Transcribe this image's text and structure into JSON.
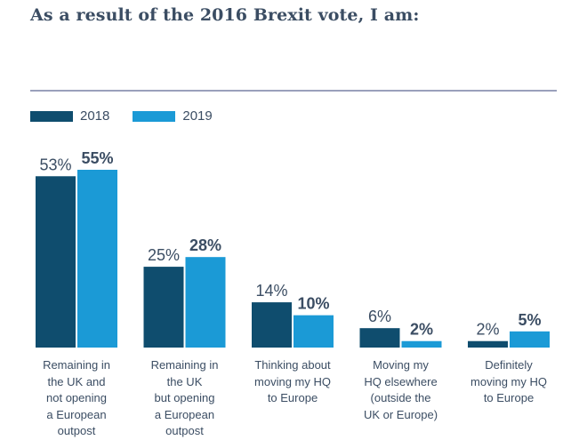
{
  "title": "As a result of the 2016 Brexit vote, I am:",
  "chart_data": {
    "type": "bar",
    "categories": [
      "Remaining in\nthe UK and\nnot opening\na European\noutpost",
      "Remaining in\nthe UK\nbut opening\na European\noutpost",
      "Thinking about\nmoving my HQ\nto Europe",
      "Moving my\nHQ elsewhere\n(outside the\nUK or Europe)",
      "Definitely\nmoving my HQ\nto Europe"
    ],
    "series": [
      {
        "name": "2018",
        "values": [
          53,
          25,
          14,
          6,
          2
        ],
        "labels": [
          "53%",
          "25%",
          "14%",
          "6%",
          "2%"
        ],
        "color": "#0f4d6e"
      },
      {
        "name": "2019",
        "values": [
          55,
          28,
          10,
          2,
          5
        ],
        "labels": [
          "55%",
          "28%",
          "10%",
          "2%",
          "5%"
        ],
        "color": "#1b9ad6"
      }
    ],
    "ylim": [
      0,
      55
    ],
    "grid": false,
    "legend_position": "top-left"
  }
}
